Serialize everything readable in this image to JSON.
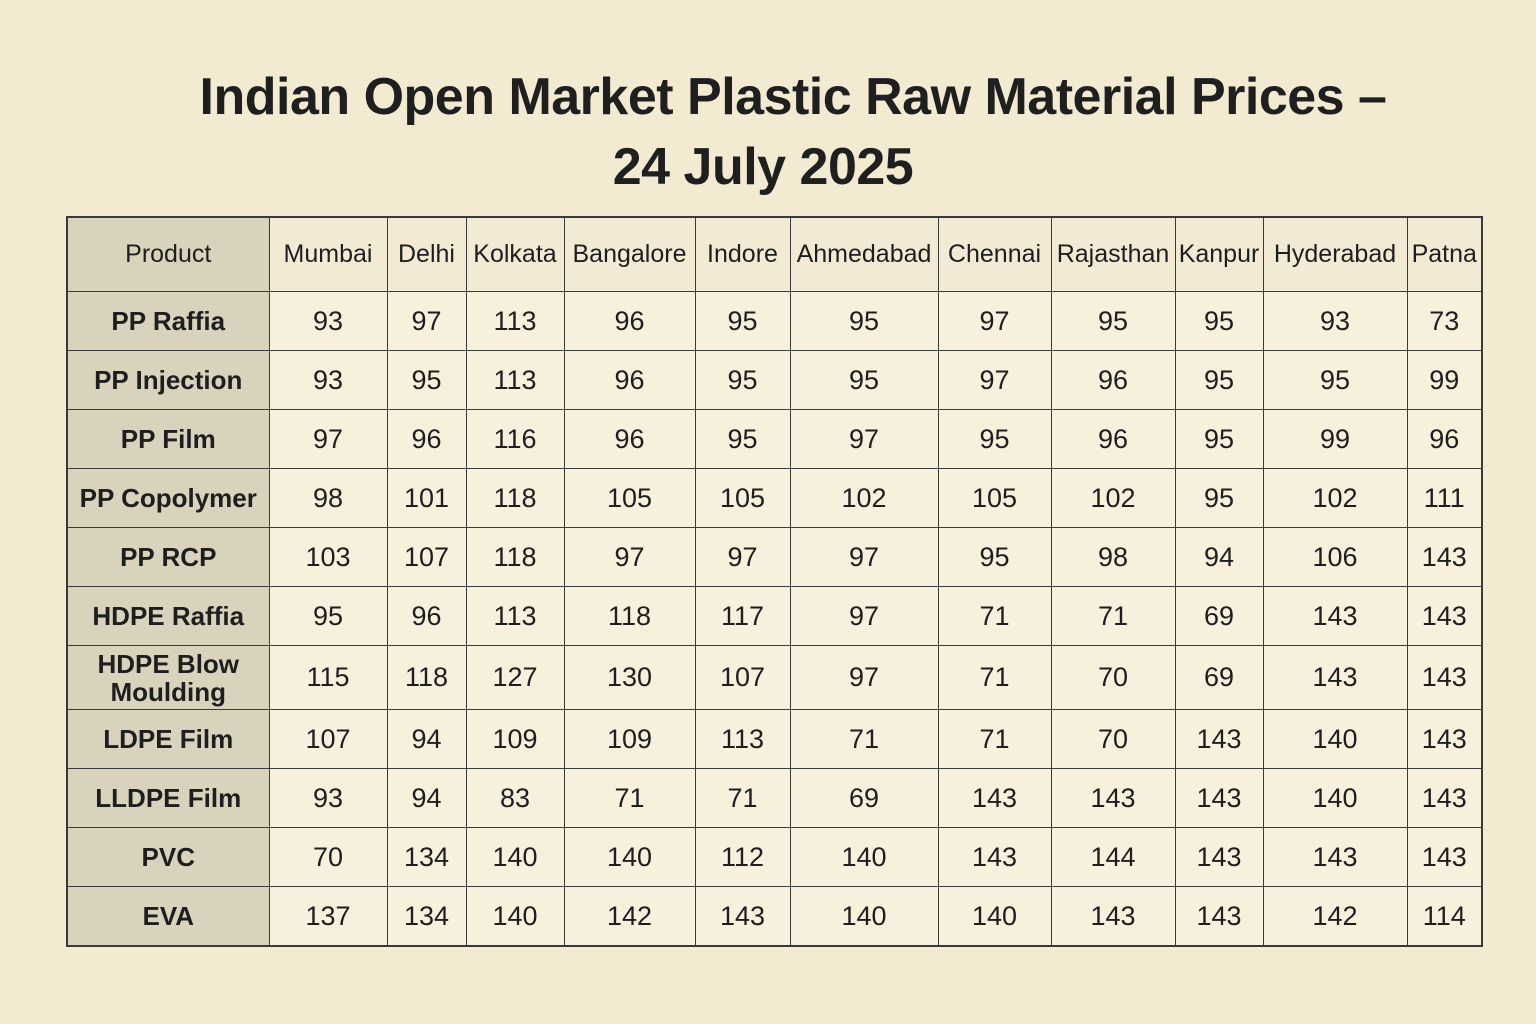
{
  "title_line1": "Indian Open Market Plastic Raw Material Prices –",
  "title_line2": "24 July 2025",
  "chart_data": {
    "type": "table",
    "columns": [
      "Product",
      "Mumbai",
      "Delhi",
      "Kolkata",
      "Bangalore",
      "Indore",
      "Ahmedabad",
      "Chennai",
      "Rajasthan",
      "Kanpur",
      "Hyderabad",
      "Patna"
    ],
    "rows": [
      {
        "product": "PP Raffia",
        "values": [
          93,
          97,
          113,
          96,
          95,
          95,
          97,
          95,
          95,
          93,
          73
        ]
      },
      {
        "product": "PP Injection",
        "values": [
          93,
          95,
          113,
          96,
          95,
          95,
          97,
          96,
          95,
          95,
          99
        ]
      },
      {
        "product": "PP Film",
        "values": [
          97,
          96,
          116,
          96,
          95,
          97,
          95,
          96,
          95,
          99,
          96
        ]
      },
      {
        "product": "PP Copolymer",
        "values": [
          98,
          101,
          118,
          105,
          105,
          102,
          105,
          102,
          95,
          102,
          111
        ]
      },
      {
        "product": "PP RCP",
        "values": [
          103,
          107,
          118,
          97,
          97,
          97,
          95,
          98,
          94,
          106,
          143
        ]
      },
      {
        "product": "HDPE Raffia",
        "values": [
          95,
          96,
          113,
          118,
          117,
          97,
          71,
          71,
          69,
          143,
          143
        ]
      },
      {
        "product": "HDPE Blow Moulding",
        "values": [
          115,
          118,
          127,
          130,
          107,
          97,
          71,
          70,
          69,
          143,
          143
        ]
      },
      {
        "product": "LDPE Film",
        "values": [
          107,
          94,
          109,
          109,
          113,
          71,
          71,
          70,
          143,
          140,
          143
        ]
      },
      {
        "product": "LLDPE Film",
        "values": [
          93,
          94,
          83,
          71,
          71,
          69,
          143,
          143,
          143,
          140,
          143
        ]
      },
      {
        "product": "PVC",
        "values": [
          70,
          134,
          140,
          140,
          112,
          140,
          143,
          144,
          143,
          143,
          143
        ]
      },
      {
        "product": "EVA",
        "values": [
          137,
          134,
          140,
          142,
          143,
          140,
          140,
          143,
          143,
          142,
          114
        ]
      }
    ]
  }
}
